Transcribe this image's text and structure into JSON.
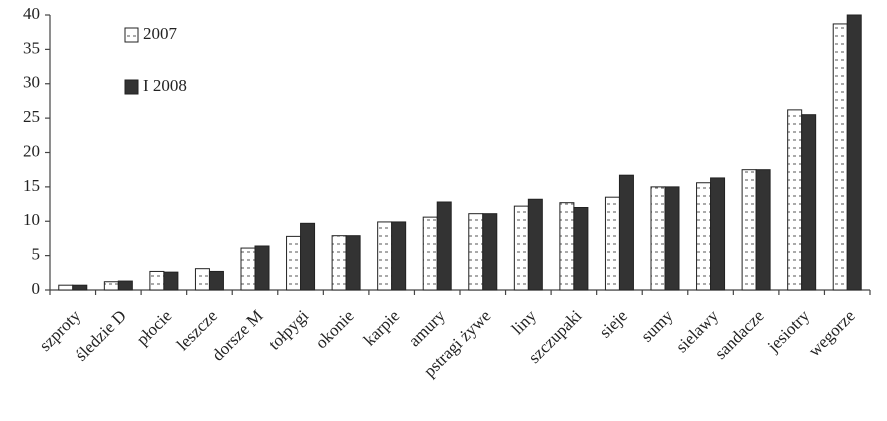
{
  "chart_data": {
    "type": "bar",
    "categories": [
      "szproty",
      "śledzie D",
      "płocie",
      "leszcze",
      "dorsze M",
      "tołpygi",
      "okonie",
      "karpie",
      "amury",
      "pstragi żywe",
      "liny",
      "szczupaki",
      "sieje",
      "sumy",
      "sielawy",
      "sandacze",
      "jesiotry",
      "wegorze"
    ],
    "series": [
      {
        "name": "2007",
        "color": "#ffffff",
        "hatch": true,
        "values": [
          0.7,
          1.2,
          2.7,
          3.1,
          6.1,
          7.8,
          7.9,
          9.9,
          10.6,
          11.1,
          12.2,
          12.7,
          13.5,
          15.0,
          15.6,
          17.5,
          26.2,
          38.7
        ]
      },
      {
        "name": "I 2008",
        "color": "#333333",
        "hatch": false,
        "values": [
          0.7,
          1.3,
          2.6,
          2.7,
          6.4,
          9.7,
          7.9,
          9.9,
          12.8,
          11.1,
          13.2,
          12.0,
          16.7,
          15.0,
          16.3,
          17.5,
          25.5,
          40
        ]
      }
    ],
    "ylim": [
      0,
      40
    ],
    "yticks": [
      0,
      5,
      10,
      15,
      20,
      25,
      30,
      35,
      40
    ],
    "grid": false,
    "legend": "upper-left"
  }
}
